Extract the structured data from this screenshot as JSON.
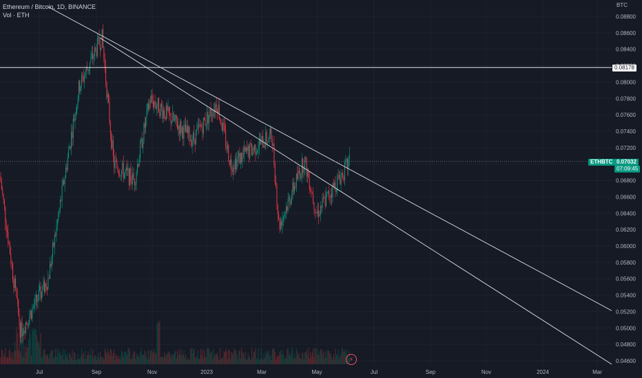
{
  "legend": {
    "title": "Ethereum / Bitcoin, 1D, BINANCE",
    "volume": "Vol · ETH"
  },
  "axis": {
    "unit": "BTC",
    "y_ticks": [
      "0.08800",
      "0.08600",
      "0.08400",
      "0.08200",
      "0.08000",
      "0.07800",
      "0.07600",
      "0.07400",
      "0.07200",
      "0.07000",
      "0.06800",
      "0.06600",
      "0.06400",
      "0.06200",
      "0.06000",
      "0.05800",
      "0.05600",
      "0.05400",
      "0.05200",
      "0.05000",
      "0.04800",
      "0.04600"
    ],
    "x_ticks": [
      "Jul",
      "Sep",
      "Nov",
      "2023",
      "Mar",
      "May",
      "Jul",
      "Sep",
      "Nov",
      "2024",
      "Mar"
    ]
  },
  "labels": {
    "level_value": "0.08178",
    "symbol": "ETHBTC",
    "last_price": "0.07032",
    "countdown": "07:09:45"
  },
  "colors": {
    "up": "#089981",
    "down": "#f23645",
    "background": "#161a25",
    "line": "#e0e3eb"
  },
  "chart_data": {
    "type": "candlestick",
    "symbol": "ETHBTC",
    "interval": "1D",
    "exchange": "BINANCE",
    "ylim": [
      0.0456,
      0.089
    ],
    "horizontal_level": 0.08178,
    "last_price": 0.07032,
    "anchors": [
      {
        "month": "Jun 2022",
        "close": 0.0685
      },
      {
        "month": "Jun 2022 low",
        "close": 0.0495
      },
      {
        "month": "Jul 2022",
        "close": 0.056
      },
      {
        "month": "Aug 2022",
        "close": 0.0795
      },
      {
        "month": "Sep 2022 high",
        "close": 0.0855
      },
      {
        "month": "Sep 2022",
        "close": 0.07
      },
      {
        "month": "Oct 2022",
        "close": 0.068
      },
      {
        "month": "Nov 2022",
        "close": 0.078
      },
      {
        "month": "Dec 2022",
        "close": 0.073
      },
      {
        "month": "Jan 2023 high",
        "close": 0.0775
      },
      {
        "month": "Feb 2023",
        "close": 0.07
      },
      {
        "month": "Mar 2023 high",
        "close": 0.0735
      },
      {
        "month": "Apr 2023 low",
        "close": 0.0625
      },
      {
        "month": "Apr 2023 high",
        "close": 0.0705
      },
      {
        "month": "May 2023 low",
        "close": 0.064
      },
      {
        "month": "Jun 2023",
        "close": 0.0703
      }
    ]
  }
}
